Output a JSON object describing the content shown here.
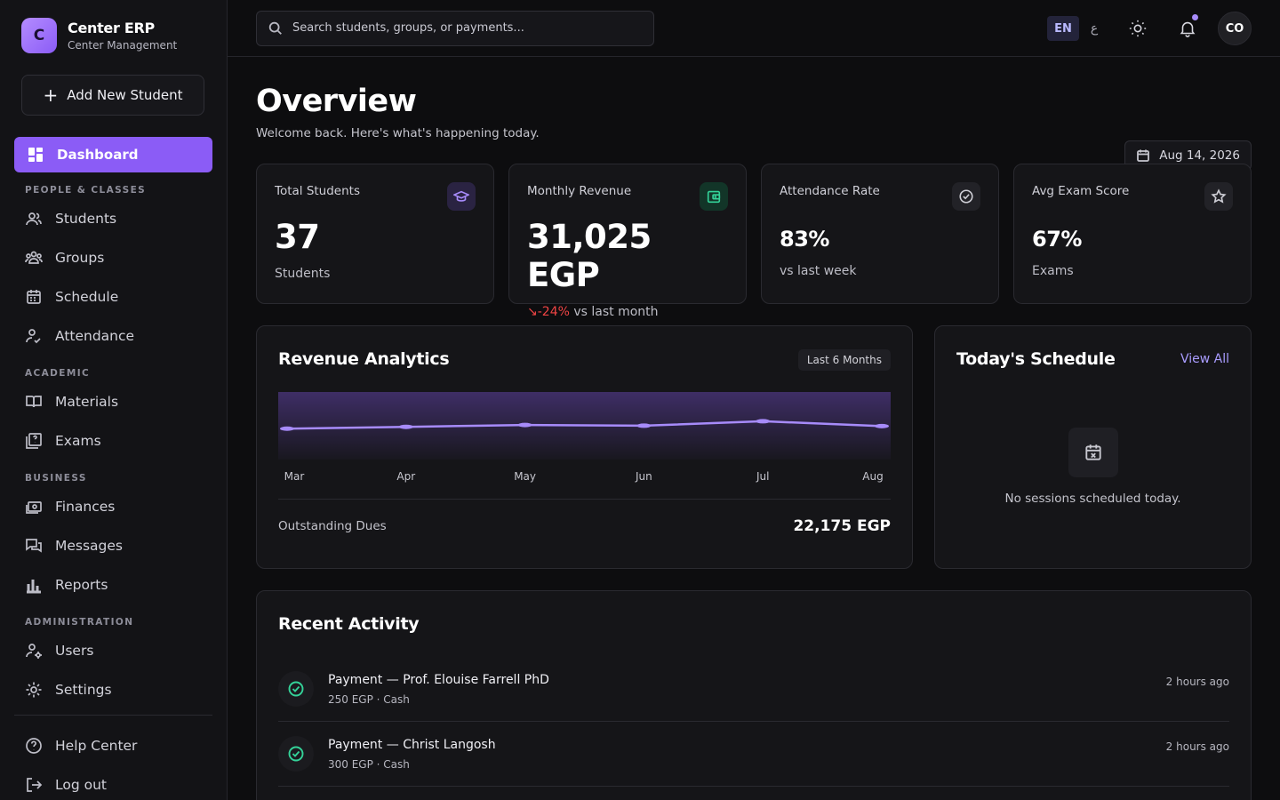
{
  "brand": {
    "logo_letter": "C",
    "title": "Center ERP",
    "subtitle": "Center Management"
  },
  "sidebar": {
    "add_button": "Add New Student",
    "active": {
      "label": "Dashboard",
      "icon": "dashboard-icon"
    },
    "sections": [
      {
        "title": "PEOPLE & CLASSES",
        "items": [
          {
            "label": "Students",
            "icon": "users-icon"
          },
          {
            "label": "Groups",
            "icon": "groups-icon"
          },
          {
            "label": "Schedule",
            "icon": "calendar-icon"
          },
          {
            "label": "Attendance",
            "icon": "attendance-icon"
          }
        ]
      },
      {
        "title": "ACADEMIC",
        "items": [
          {
            "label": "Materials",
            "icon": "book-icon"
          },
          {
            "label": "Exams",
            "icon": "exam-icon"
          }
        ]
      },
      {
        "title": "BUSINESS",
        "items": [
          {
            "label": "Finances",
            "icon": "money-icon"
          },
          {
            "label": "Messages",
            "icon": "messages-icon"
          },
          {
            "label": "Reports",
            "icon": "bar-chart-icon"
          }
        ]
      },
      {
        "title": "ADMINISTRATION",
        "items": [
          {
            "label": "Users",
            "icon": "user-cog-icon"
          },
          {
            "label": "Settings",
            "icon": "gear-icon"
          }
        ]
      }
    ],
    "footer": [
      {
        "label": "Help Center",
        "icon": "help-icon"
      },
      {
        "label": "Log out",
        "icon": "logout-icon"
      }
    ]
  },
  "topbar": {
    "search_placeholder": "Search students, groups, or payments...",
    "lang_en": "EN",
    "lang_ar": "ع",
    "avatar": "CO"
  },
  "page": {
    "title": "Overview",
    "subtitle": "Welcome back. Here's what's happening today.",
    "date": "Aug 14, 2026"
  },
  "stats": [
    {
      "label": "Total Students",
      "value": "37",
      "foot": "Students",
      "icon": "graduation-cap-icon",
      "accent": "#8b5cf6"
    },
    {
      "label": "Monthly Revenue",
      "value": "31,025 EGP",
      "trend": "-24%",
      "foot": "vs last month",
      "icon": "wallet-icon",
      "accent": "#10b981"
    },
    {
      "label": "Attendance Rate",
      "value": "83%",
      "foot": "vs last week",
      "icon": "check-circle-icon",
      "accent": "#9ca3af"
    },
    {
      "label": "Avg Exam Score",
      "value": "67%",
      "foot": "Exams",
      "icon": "star-icon",
      "accent": "#9ca3af"
    }
  ],
  "revenue": {
    "title": "Revenue Analytics",
    "range": "Last 6 Months",
    "dues_label": "Outstanding Dues",
    "dues_value": "22,175 EGP"
  },
  "chart_data": {
    "type": "area",
    "categories": [
      "Mar",
      "Apr",
      "May",
      "Jun",
      "Jul",
      "Aug"
    ],
    "values": [
      0.4,
      0.45,
      0.5,
      0.48,
      0.6,
      0.47
    ],
    "title": "Revenue Analytics",
    "color": "#8b5cf6"
  },
  "schedule": {
    "title": "Today's Schedule",
    "view_all": "View All",
    "empty": "No sessions scheduled today."
  },
  "activity": {
    "title": "Recent Activity",
    "items": [
      {
        "title": "Payment — Prof. Elouise Farrell PhD",
        "sub": "250 EGP · Cash",
        "time": "2 hours ago"
      },
      {
        "title": "Payment — Christ Langosh",
        "sub": "300 EGP · Cash",
        "time": "2 hours ago"
      }
    ]
  },
  "colors": {
    "accent": "#8b5cf6",
    "success": "#34d399",
    "danger": "#ef4444"
  }
}
